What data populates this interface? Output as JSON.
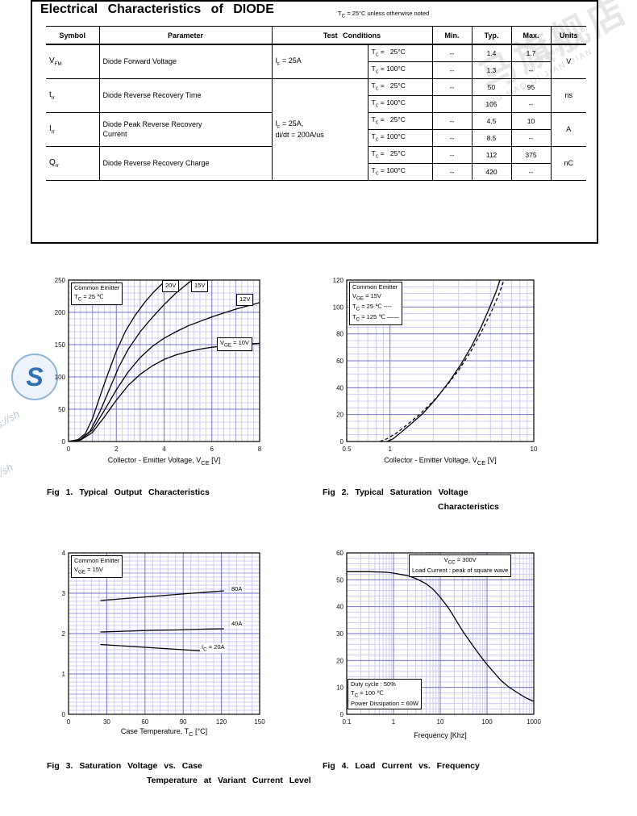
{
  "watermarks": {
    "cn": "马旗舰店",
    "tm": "tmall.com",
    "en": "SHU MAO QI JIAN DIAN",
    "frag1": "s://sh",
    "frag2": "l/sh",
    "logo_letter": "S"
  },
  "table_section": {
    "title": "Electrical Characteristics of DIODE",
    "note": "T~C~ = 25°C unless otherwise noted",
    "headers": [
      "Symbol",
      "Parameter",
      "Test Conditions",
      "Min.",
      "Typ.",
      "Max.",
      "Units"
    ],
    "rows": [
      {
        "symbol": "V~FM~",
        "parameter": "Diode Forward Voltage",
        "condition": "I~F~ = 25A",
        "units": "V",
        "sub": [
          {
            "tc": "T~C~ =   25°C",
            "min": "--",
            "typ": "1.4",
            "max": "1.7"
          },
          {
            "tc": "T~C~ = 100°C",
            "min": "--",
            "typ": "1.3",
            "max": "--"
          }
        ]
      },
      {
        "symbol": "t~rr~",
        "parameter": "Diode Reverse Recovery Time",
        "condition": "I~F~ = 25A,\ndi/dt = 200A/us",
        "units": "ns",
        "sub": [
          {
            "tc": "T~C~ =   25°C",
            "min": "--",
            "typ": "50",
            "max": "95"
          },
          {
            "tc": "T~C~ = 100°C",
            "min": "",
            "typ": "105",
            "max": "--"
          }
        ]
      },
      {
        "symbol": "I~rr~",
        "parameter": "Diode Peak Reverse Recovery\nCurrent",
        "units": "A",
        "sub": [
          {
            "tc": "T~C~ =   25°C",
            "min": "--",
            "typ": "4.5",
            "max": "10"
          },
          {
            "tc": "T~C~ = 100°C",
            "min": "--",
            "typ": "8.5",
            "max": "--"
          }
        ]
      },
      {
        "symbol": "Q~rr~",
        "parameter": "Diode Reverse Recovery Charge",
        "units": "nC",
        "sub": [
          {
            "tc": "T~C~ =   25°C",
            "min": "--",
            "typ": "112",
            "max": "375"
          },
          {
            "tc": "T~C~ = 100°C",
            "min": "--",
            "typ": "420",
            "max": "--"
          }
        ]
      }
    ]
  },
  "chart_data": [
    {
      "type": "line",
      "caption_lines": [
        "Fig 1. Typical Output Characteristics"
      ],
      "xlabel": "Collector - Emitter Voltage, V~CE~ [V]",
      "x": {
        "scale": "linear",
        "min": 0,
        "max": 8,
        "minor": 0.25,
        "mid": 1,
        "major": 2,
        "ticks": [
          {
            "v": 0,
            "label": "0"
          },
          {
            "v": 2,
            "label": "2"
          },
          {
            "v": 4,
            "label": "4"
          },
          {
            "v": 6,
            "label": "6"
          },
          {
            "v": 8,
            "label": "8"
          }
        ]
      },
      "y": {
        "scale": "linear",
        "min": 0,
        "max": 250,
        "minor": 10,
        "major": 50,
        "ticks": [
          {
            "v": 0,
            "label": "0"
          },
          {
            "v": 50,
            "label": "50"
          },
          {
            "v": 100,
            "label": "100"
          },
          {
            "v": 150,
            "label": "150"
          },
          {
            "v": 200,
            "label": "200"
          },
          {
            "v": 250,
            "label": "250"
          }
        ]
      },
      "legend": {
        "lines": [
          "Common Emitter",
          "T~C~ = 25 ℃"
        ]
      },
      "curve_labels": [
        {
          "text": "20V"
        },
        {
          "text": "15V"
        },
        {
          "text": "12V"
        },
        {
          "text": "V~GE~ = 10V"
        }
      ],
      "series": [
        {
          "name": "VGE = 20V",
          "points": [
            [
              0,
              0
            ],
            [
              0.4,
              3
            ],
            [
              0.7,
              12
            ],
            [
              1,
              35
            ],
            [
              1.3,
              68
            ],
            [
              1.6,
              100
            ],
            [
              2,
              140
            ],
            [
              2.4,
              172
            ],
            [
              2.8,
              196
            ],
            [
              3.2,
              216
            ],
            [
              3.6,
              233
            ],
            [
              4,
              247
            ],
            [
              4.35,
              258
            ]
          ]
        },
        {
          "name": "VGE = 15V",
          "points": [
            [
              0,
              0
            ],
            [
              0.5,
              3
            ],
            [
              0.9,
              16
            ],
            [
              1.3,
              45
            ],
            [
              1.7,
              80
            ],
            [
              2.1,
              115
            ],
            [
              2.5,
              143
            ],
            [
              3,
              170
            ],
            [
              3.5,
              192
            ],
            [
              4,
              212
            ],
            [
              4.5,
              230
            ],
            [
              5,
              245
            ],
            [
              5.45,
              258
            ]
          ]
        },
        {
          "name": "VGE = 12V",
          "points": [
            [
              0,
              0
            ],
            [
              0.5,
              3
            ],
            [
              1,
              18
            ],
            [
              1.5,
              48
            ],
            [
              2,
              80
            ],
            [
              2.5,
              108
            ],
            [
              3,
              130
            ],
            [
              3.5,
              147
            ],
            [
              4,
              160
            ],
            [
              4.5,
              170
            ],
            [
              5,
              179
            ],
            [
              5.5,
              186
            ],
            [
              6,
              193
            ],
            [
              6.5,
              199
            ],
            [
              7,
              205
            ],
            [
              7.5,
              210
            ],
            [
              8,
              215
            ]
          ]
        },
        {
          "name": "VGE = 10V",
          "points": [
            [
              0,
              0
            ],
            [
              0.5,
              2
            ],
            [
              1,
              14
            ],
            [
              1.5,
              38
            ],
            [
              2,
              64
            ],
            [
              2.5,
              87
            ],
            [
              3,
              104
            ],
            [
              3.5,
              117
            ],
            [
              4,
              127
            ],
            [
              4.5,
              134
            ],
            [
              5,
              139
            ],
            [
              5.5,
              143
            ],
            [
              6,
              146
            ],
            [
              6.5,
              148
            ],
            [
              7,
              150
            ],
            [
              7.5,
              151
            ],
            [
              8,
              152
            ]
          ]
        }
      ]
    },
    {
      "type": "line",
      "caption_lines": [
        "Fig 2. Typical Saturation Voltage",
        "Characteristics"
      ],
      "xlabel": "Collector - Emitter Voltage, V~CE~ [V]",
      "x": {
        "scale": "log",
        "min": 0.5,
        "max": 10,
        "ticks": [
          {
            "v": 0.5,
            "label": "0.5"
          },
          {
            "v": 1,
            "label": "1"
          },
          {
            "v": 10,
            "label": "10"
          }
        ]
      },
      "y": {
        "scale": "linear",
        "min": 0,
        "max": 120,
        "minor": 5,
        "major": 20,
        "ticks": [
          {
            "v": 0,
            "label": "0"
          },
          {
            "v": 20,
            "label": "20"
          },
          {
            "v": 40,
            "label": "40"
          },
          {
            "v": 60,
            "label": "60"
          },
          {
            "v": 80,
            "label": "80"
          },
          {
            "v": 100,
            "label": "100"
          },
          {
            "v": 120,
            "label": "120"
          }
        ]
      },
      "legend": {
        "lines": [
          "Common Emitter",
          "V~GE~ = 15V",
          "T~C~ =   25 ℃  ----",
          "T~C~ = 125 ℃  ——"
        ]
      },
      "series": [
        {
          "name": "TC = 25 C",
          "dash": true,
          "points": [
            [
              0.85,
              0
            ],
            [
              0.95,
              2
            ],
            [
              1.1,
              6
            ],
            [
              1.3,
              12
            ],
            [
              1.6,
              20
            ],
            [
              2,
              30
            ],
            [
              2.5,
              42
            ],
            [
              3,
              53
            ],
            [
              3.6,
              66
            ],
            [
              4.3,
              81
            ],
            [
              5,
              95
            ],
            [
              5.7,
              109
            ],
            [
              6.3,
              122
            ]
          ]
        },
        {
          "name": "TC = 125 C",
          "points": [
            [
              0.95,
              0
            ],
            [
              1.05,
              2
            ],
            [
              1.2,
              7
            ],
            [
              1.4,
              13
            ],
            [
              1.7,
              21
            ],
            [
              2.1,
              32
            ],
            [
              2.6,
              45
            ],
            [
              3.1,
              57
            ],
            [
              3.7,
              71
            ],
            [
              4.3,
              85
            ],
            [
              4.9,
              99
            ],
            [
              5.5,
              112
            ],
            [
              5.9,
              122
            ]
          ]
        }
      ]
    },
    {
      "type": "line",
      "caption_lines": [
        "Fig 3. Saturation Voltage vs. Case",
        "Temperature at Variant Current Level"
      ],
      "xlabel": "Case Temperature, T~C~ [°C]",
      "x": {
        "scale": "linear",
        "min": 0,
        "max": 150,
        "minor": 6,
        "major": 30,
        "ticks": [
          {
            "v": 0,
            "label": "0"
          },
          {
            "v": 30,
            "label": "30"
          },
          {
            "v": 60,
            "label": "60"
          },
          {
            "v": 90,
            "label": "90"
          },
          {
            "v": 120,
            "label": "120"
          },
          {
            "v": 150,
            "label": "150"
          }
        ]
      },
      "y": {
        "scale": "linear",
        "min": 0,
        "max": 4,
        "minor": 0.1,
        "mid": 0.5,
        "major": 1,
        "ticks": [
          {
            "v": 0,
            "label": "0"
          },
          {
            "v": 1,
            "label": "1"
          },
          {
            "v": 2,
            "label": "2"
          },
          {
            "v": 3,
            "label": "3"
          },
          {
            "v": 4,
            "label": "4"
          }
        ]
      },
      "legend": {
        "lines": [
          "Common Emitter",
          "V~GE~ = 15V"
        ]
      },
      "curve_labels": [
        {
          "text": "80A"
        },
        {
          "text": "40A"
        },
        {
          "text": "I~C~ = 20A"
        }
      ],
      "series": [
        {
          "name": "80A",
          "points": [
            [
              25,
              2.82
            ],
            [
              45,
              2.87
            ],
            [
              65,
              2.92
            ],
            [
              85,
              2.97
            ],
            [
              105,
              3.02
            ],
            [
              122,
              3.06
            ]
          ]
        },
        {
          "name": "40A",
          "points": [
            [
              25,
              2.04
            ],
            [
              45,
              2.06
            ],
            [
              65,
              2.08
            ],
            [
              85,
              2.09
            ],
            [
              105,
              2.11
            ],
            [
              122,
              2.12
            ]
          ]
        },
        {
          "name": "IC = 20A",
          "points": [
            [
              25,
              1.73
            ],
            [
              45,
              1.69
            ],
            [
              65,
              1.65
            ],
            [
              85,
              1.61
            ],
            [
              105,
              1.57
            ],
            [
              122,
              1.54
            ]
          ]
        }
      ]
    },
    {
      "type": "line",
      "caption_lines": [
        "Fig 4. Load Current vs. Frequency"
      ],
      "xlabel": "Frequency [Khz]",
      "x": {
        "scale": "log",
        "min": 0.1,
        "max": 1000,
        "ticks": [
          {
            "v": 0.1,
            "label": "0.1"
          },
          {
            "v": 1,
            "label": "1"
          },
          {
            "v": 10,
            "label": "10"
          },
          {
            "v": 100,
            "label": "100"
          },
          {
            "v": 1000,
            "label": "1000"
          }
        ]
      },
      "y": {
        "scale": "linear",
        "min": 0,
        "max": 60,
        "minor": 2,
        "major": 10,
        "ticks": [
          {
            "v": 0,
            "label": "0"
          },
          {
            "v": 10,
            "label": "10"
          },
          {
            "v": 20,
            "label": "20"
          },
          {
            "v": 30,
            "label": "30"
          },
          {
            "v": 40,
            "label": "40"
          },
          {
            "v": 50,
            "label": "50"
          },
          {
            "v": 60,
            "label": "60"
          }
        ]
      },
      "ann_lines": [
        "V~CC~ = 300V",
        "Load Current : peak of square wave"
      ],
      "box_lines": [
        "Duty cycle : 50%",
        "T~C~ = 100 ℃",
        "Power Dissipation = 60W"
      ],
      "series": [
        {
          "name": "load current",
          "points": [
            [
              0.1,
              53
            ],
            [
              0.3,
              53
            ],
            [
              0.7,
              52.8
            ],
            [
              1,
              52.5
            ],
            [
              2,
              51.5
            ],
            [
              3,
              50.5
            ],
            [
              5,
              48.5
            ],
            [
              7,
              46.5
            ],
            [
              10,
              43.5
            ],
            [
              15,
              39.5
            ],
            [
              20,
              36
            ],
            [
              30,
              31
            ],
            [
              50,
              25.5
            ],
            [
              70,
              22
            ],
            [
              100,
              18.5
            ],
            [
              150,
              15
            ],
            [
              200,
              12.5
            ],
            [
              300,
              10
            ],
            [
              500,
              7.5
            ],
            [
              700,
              6
            ],
            [
              1000,
              4.8
            ]
          ]
        }
      ]
    }
  ]
}
